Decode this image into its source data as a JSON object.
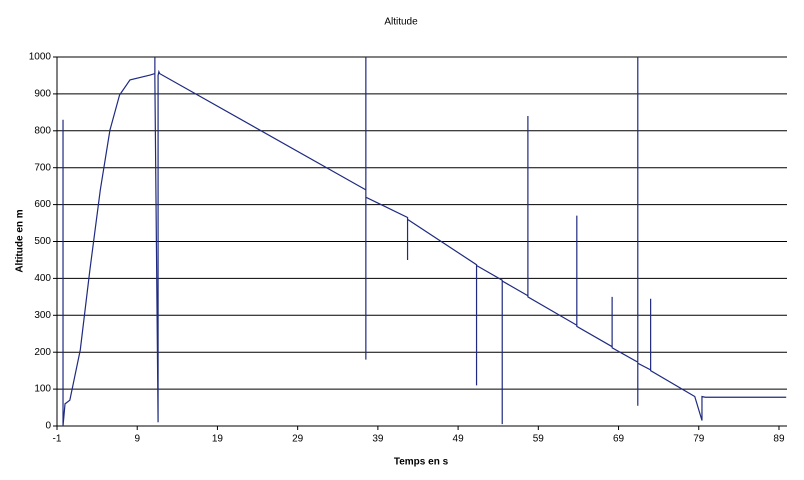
{
  "chart_data": {
    "type": "line",
    "title": "Altitude",
    "x_label": "Temps en s",
    "y_label": "Altitude en m",
    "x": [
      -0.25,
      -0.25,
      -0.25,
      0,
      0.6,
      1.9,
      3.1,
      4.4,
      5.6,
      6.8,
      8.1,
      10.6,
      11.2,
      11.2,
      11.2,
      11.6,
      11.6,
      11.7,
      11.8,
      37.5,
      37.5,
      37.5,
      37.5,
      42.7,
      42.7,
      42.7,
      51.3,
      51.3,
      51.3,
      54.5,
      54.5,
      54.5,
      57.7,
      57.7,
      57.7,
      63.8,
      63.8,
      63.8,
      68.2,
      68.2,
      68.2,
      71.4,
      71.4,
      71.4,
      71.4,
      73,
      73,
      73,
      78.5,
      79.4,
      79.4,
      79.8,
      89.9
    ],
    "series": [
      {
        "color": "#1f2a80",
        "values": [
          60,
          830,
          0,
          60,
          70,
          206,
          423,
          640,
          802,
          897,
          938,
          951,
          955,
          1000,
          940,
          10,
          950,
          960,
          955,
          640,
          1000,
          180,
          620,
          565,
          450,
          560,
          437,
          110,
          435,
          395,
          5,
          393,
          353,
          840,
          350,
          273,
          570,
          270,
          215,
          350,
          212,
          173,
          1000,
          55,
          170,
          152,
          345,
          150,
          80,
          15,
          80,
          78,
          78
        ]
      }
    ],
    "xlim": [
      -1,
      90
    ],
    "ylim": [
      0,
      1000
    ],
    "xticks": [
      -1,
      9,
      19,
      29,
      39,
      49,
      59,
      69,
      79,
      89
    ],
    "yticks": [
      0,
      100,
      200,
      300,
      400,
      500,
      600,
      700,
      800,
      900,
      1000
    ],
    "grid": true
  }
}
